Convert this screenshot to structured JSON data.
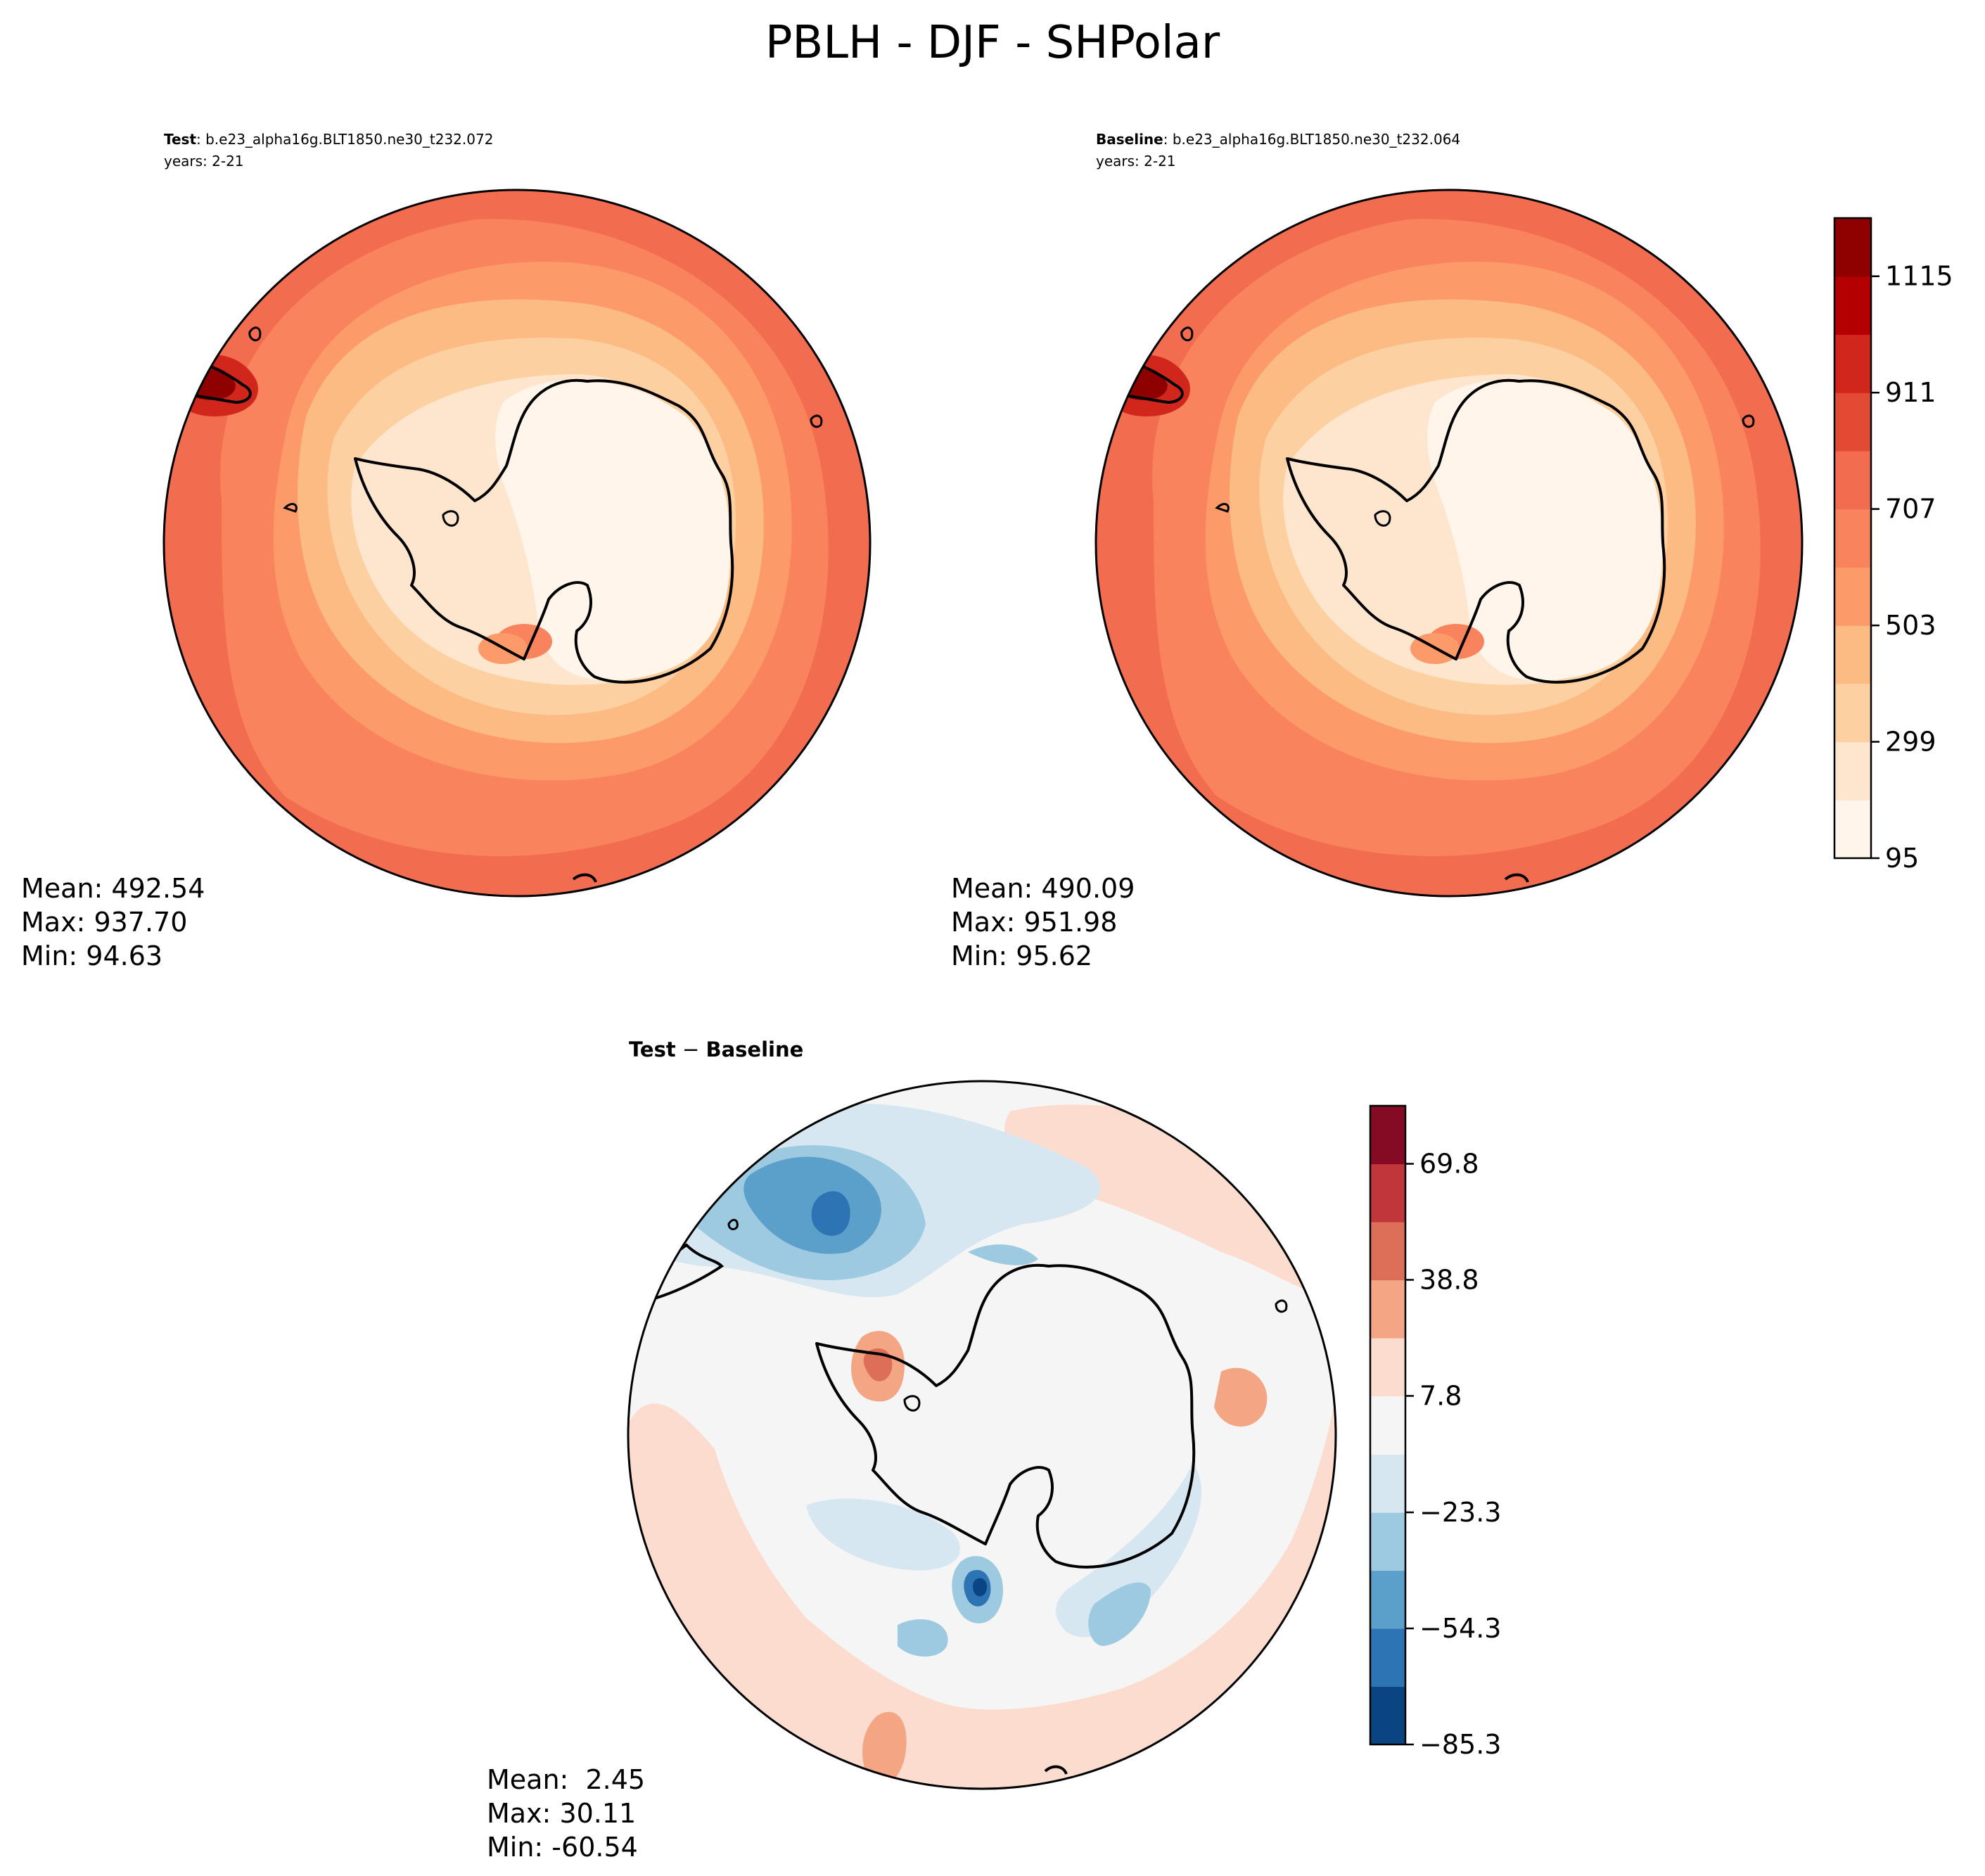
{
  "figure_title": "PBLH - DJF - SHPolar",
  "panels": {
    "test": {
      "bold_label": "Test",
      "case_text": ": b.e23_alpha16g.BLT1850.ne30_t232.072",
      "years": "years: 2-21",
      "mean": "Mean: 492.54",
      "max": "Max: 937.70",
      "min": "Min: 94.63"
    },
    "baseline": {
      "bold_label": "Baseline",
      "case_text": ": b.e23_alpha16g.BLT1850.ne30_t232.064",
      "years": "years: 2-21",
      "mean": "Mean: 490.09",
      "max": "Max: 951.98",
      "min": "Min: 95.62"
    },
    "diff": {
      "title_a": "Test",
      "title_op": " − ",
      "title_b": "Baseline",
      "mean": "Mean:  2.45",
      "max": "Max: 30.11",
      "min": "Min: -60.54"
    }
  },
  "chart_data": [
    {
      "type": "heatmap",
      "projection": "south-polar-stereographic",
      "variable": "PBLH",
      "season": "DJF",
      "region": "SHPolar",
      "panels": [
        "Test",
        "Baseline"
      ],
      "colormap": "OrRd",
      "colorbar": {
        "levels": [
          95,
          197,
          299,
          401,
          503,
          605,
          707,
          809,
          911,
          1013,
          1115,
          1217
        ],
        "tick_labels": [
          "95",
          "299",
          "503",
          "707",
          "911",
          "1115"
        ],
        "colors": [
          "#fff5eb",
          "#fee6ce",
          "#fdd0a2",
          "#fdbb84",
          "#fc9a6a",
          "#f8835c",
          "#f26c4f",
          "#e34a33",
          "#d0261c",
          "#b40000",
          "#8f0000"
        ]
      }
    },
    {
      "type": "heatmap",
      "projection": "south-polar-stereographic",
      "panels": [
        "Test − Baseline"
      ],
      "colormap": "RdBu_r",
      "colorbar": {
        "levels": [
          -85.3,
          -69.8,
          -54.3,
          -38.8,
          -23.3,
          -7.8,
          7.8,
          23.3,
          38.8,
          54.3,
          69.8,
          85.3
        ],
        "tick_labels": [
          "−85.3",
          "−54.3",
          "−23.3",
          "7.8",
          "38.8",
          "69.8"
        ],
        "colors": [
          "#0b4482",
          "#2c74b4",
          "#5b9fcb",
          "#9dcae1",
          "#d7e7f1",
          "#f5f5f5",
          "#fbdcce",
          "#f4a684",
          "#dd6e58",
          "#c0363a",
          "#850b24"
        ]
      }
    }
  ]
}
